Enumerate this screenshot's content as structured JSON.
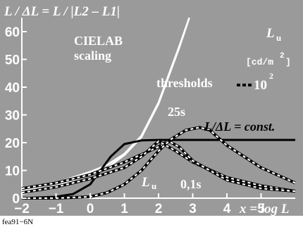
{
  "chart_data": {
    "type": "line",
    "title": "L / ΔL = L / |L2 – L1|",
    "xlabel": "x = log L",
    "ylabel": "",
    "xlim": [
      -2,
      6
    ],
    "ylim": [
      0,
      65
    ],
    "x_ticks": [
      "−2",
      "−1",
      "0",
      "1",
      "2",
      "3",
      "4",
      "5"
    ],
    "y_ticks": [
      "0",
      "10",
      "20",
      "30",
      "40",
      "50",
      "60"
    ],
    "series": [
      {
        "name": "CIELAB scaling",
        "style": "white-solid",
        "x": [
          -2,
          -1,
          0,
          0.5,
          1,
          1.5,
          2,
          2.3,
          2.6,
          2.9
        ],
        "y": [
          1.5,
          4.5,
          8.5,
          11,
          15.5,
          22,
          34,
          44,
          54,
          65
        ]
      },
      {
        "name": "thresholds",
        "style": "white-solid",
        "x": [
          -2,
          -1,
          0,
          0.5,
          1,
          1.5,
          2,
          2.3,
          2.6,
          2.9
        ],
        "y": [
          2.5,
          5.5,
          9.5,
          12,
          16,
          22.5,
          34.5,
          44.5,
          54.5,
          65
        ]
      },
      {
        "name": "L/ΔL = const.",
        "style": "black-solid",
        "x": [
          -2,
          -1,
          -0.5,
          0,
          0.3,
          0.6,
          1,
          1.5,
          2,
          3,
          4,
          5,
          6
        ],
        "y": [
          0,
          0.5,
          1.5,
          5,
          10,
          15,
          19.5,
          20.8,
          21,
          21,
          21,
          21,
          21
        ]
      },
      {
        "name": "25s",
        "style": "dashed",
        "x": [
          -2,
          -1,
          0,
          1,
          2,
          2.8,
          3.2,
          3.5,
          4,
          5,
          6
        ],
        "y": [
          3.5,
          5.5,
          8.5,
          13,
          18.5,
          24.5,
          25.5,
          24.5,
          19,
          11,
          5.5
        ]
      },
      {
        "name": "0,1s",
        "style": "dashed",
        "x": [
          -2,
          -1,
          0,
          1,
          1.5,
          2,
          2.5,
          3,
          4,
          5,
          6
        ],
        "y": [
          2,
          4,
          7,
          11,
          15,
          20.5,
          17,
          13,
          7.5,
          4.5,
          2.5
        ]
      },
      {
        "name": "Lu",
        "style": "dashed",
        "x": [
          -2,
          -1,
          0,
          0.5,
          1,
          1.5,
          2,
          2.3,
          2.6,
          3,
          4,
          5,
          6
        ],
        "y": [
          0,
          0,
          0.5,
          2,
          5,
          10,
          17,
          20.5,
          18.5,
          13.5,
          6.5,
          3.5,
          2.5
        ]
      }
    ],
    "annotations": {
      "cielab_line1": "CIELAB",
      "cielab_line2": "scaling",
      "thresholds": "thresholds",
      "const": "L/ΔL = const.",
      "t25": "25s",
      "t01": "0,1s",
      "lu": "L",
      "lu_sub": "u"
    },
    "legend": {
      "title": "L",
      "title_sub": "u",
      "unit": "[cd/m",
      "unit_sup": "2",
      "unit_end": "]",
      "entry": "10",
      "entry_sup": "2",
      "placement": "top-right"
    },
    "colors": {
      "background": "#9a9a9a",
      "light": "#ffffff",
      "dark": "#000000"
    }
  },
  "footer": {
    "code": "fea91−6N"
  }
}
